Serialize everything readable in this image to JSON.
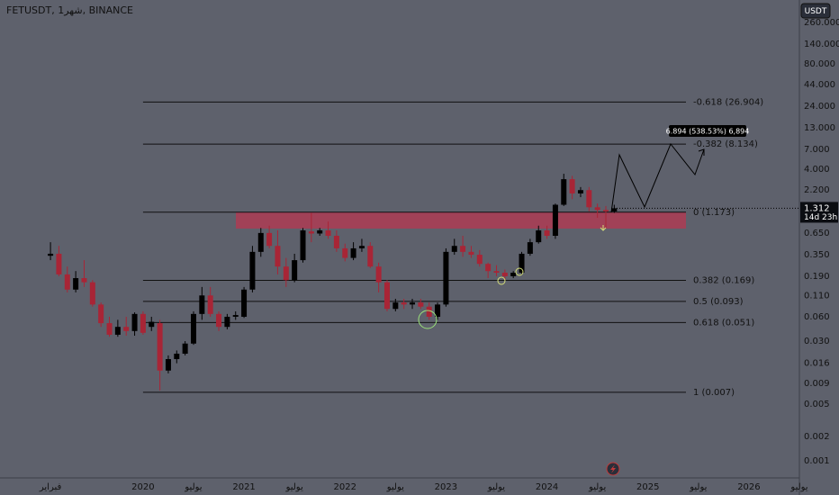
{
  "chart_data": {
    "type": "candlestick",
    "title": "FETUSDT, 1شهر, BINANCE",
    "currency_button": "USDT",
    "log_scale": true,
    "up_color": "#000000",
    "down_color": "#a82536",
    "x": [
      "2019-02",
      "2019-03",
      "2019-04",
      "2019-05",
      "2019-06",
      "2019-07",
      "2019-08",
      "2019-09",
      "2019-10",
      "2019-11",
      "2019-12",
      "2020-01",
      "2020-02",
      "2020-03",
      "2020-04",
      "2020-05",
      "2020-06",
      "2020-07",
      "2020-08",
      "2020-09",
      "2020-10",
      "2020-11",
      "2020-12",
      "2021-01",
      "2021-02",
      "2021-03",
      "2021-04",
      "2021-05",
      "2021-06",
      "2021-07",
      "2021-08",
      "2021-09",
      "2021-10",
      "2021-11",
      "2021-12",
      "2022-01",
      "2022-02",
      "2022-03",
      "2022-04",
      "2022-05",
      "2022-06",
      "2022-07",
      "2022-08",
      "2022-09",
      "2022-10",
      "2022-11",
      "2022-12",
      "2023-01",
      "2023-02",
      "2023-03",
      "2023-04",
      "2023-05",
      "2023-06",
      "2023-07",
      "2023-08",
      "2023-09",
      "2023-10",
      "2023-11",
      "2023-12",
      "2024-01",
      "2024-02",
      "2024-03",
      "2024-04",
      "2024-05",
      "2024-06",
      "2024-07",
      "2024-08",
      "2024-09"
    ],
    "open": [
      0.34,
      0.36,
      0.2,
      0.13,
      0.18,
      0.16,
      0.085,
      0.05,
      0.036,
      0.045,
      0.04,
      0.065,
      0.045,
      0.05,
      0.013,
      0.018,
      0.021,
      0.028,
      0.065,
      0.11,
      0.065,
      0.045,
      0.06,
      0.06,
      0.13,
      0.38,
      0.65,
      0.45,
      0.25,
      0.17,
      0.3,
      0.68,
      0.64,
      0.7,
      0.6,
      0.42,
      0.32,
      0.42,
      0.45,
      0.25,
      0.16,
      0.075,
      0.09,
      0.085,
      0.09,
      0.08,
      0.06,
      0.085,
      0.38,
      0.45,
      0.38,
      0.35,
      0.27,
      0.22,
      0.21,
      0.19,
      0.21,
      0.36,
      0.5,
      0.7,
      0.6,
      1.45,
      3.0,
      2.0,
      2.2,
      1.35,
      1.25,
      1.2
    ],
    "high": [
      0.5,
      0.45,
      0.25,
      0.22,
      0.3,
      0.17,
      0.09,
      0.06,
      0.055,
      0.06,
      0.068,
      0.07,
      0.06,
      0.055,
      0.02,
      0.023,
      0.03,
      0.07,
      0.14,
      0.14,
      0.07,
      0.065,
      0.07,
      0.14,
      0.45,
      0.75,
      0.8,
      0.7,
      0.32,
      0.36,
      0.75,
      1.15,
      0.75,
      0.9,
      0.7,
      0.48,
      0.5,
      0.55,
      0.5,
      0.28,
      0.17,
      0.1,
      0.1,
      0.1,
      0.1,
      0.09,
      0.09,
      0.42,
      0.55,
      0.6,
      0.45,
      0.4,
      0.28,
      0.26,
      0.23,
      0.22,
      0.38,
      0.55,
      0.8,
      0.8,
      1.5,
      3.5,
      3.3,
      2.4,
      2.4,
      1.5,
      1.4,
      1.45
    ],
    "low": [
      0.3,
      0.19,
      0.12,
      0.12,
      0.14,
      0.08,
      0.045,
      0.034,
      0.034,
      0.035,
      0.035,
      0.036,
      0.04,
      0.0074,
      0.012,
      0.016,
      0.02,
      0.027,
      0.055,
      0.06,
      0.04,
      0.042,
      0.055,
      0.058,
      0.12,
      0.33,
      0.42,
      0.2,
      0.14,
      0.16,
      0.28,
      0.5,
      0.6,
      0.55,
      0.38,
      0.29,
      0.3,
      0.38,
      0.24,
      0.12,
      0.07,
      0.07,
      0.075,
      0.075,
      0.075,
      0.055,
      0.055,
      0.08,
      0.35,
      0.33,
      0.32,
      0.25,
      0.18,
      0.19,
      0.17,
      0.18,
      0.2,
      0.34,
      0.48,
      0.55,
      0.55,
      1.4,
      1.7,
      1.8,
      1.2,
      1.0,
      0.75,
      1.15
    ],
    "close": [
      0.36,
      0.2,
      0.13,
      0.18,
      0.16,
      0.085,
      0.05,
      0.036,
      0.045,
      0.04,
      0.065,
      0.038,
      0.052,
      0.013,
      0.018,
      0.021,
      0.028,
      0.065,
      0.11,
      0.065,
      0.045,
      0.06,
      0.063,
      0.13,
      0.38,
      0.65,
      0.45,
      0.25,
      0.17,
      0.3,
      0.7,
      0.64,
      0.7,
      0.6,
      0.42,
      0.32,
      0.42,
      0.45,
      0.25,
      0.16,
      0.075,
      0.09,
      0.085,
      0.09,
      0.08,
      0.06,
      0.085,
      0.38,
      0.45,
      0.38,
      0.35,
      0.27,
      0.22,
      0.21,
      0.19,
      0.21,
      0.36,
      0.5,
      0.7,
      0.6,
      1.45,
      3.0,
      2.0,
      2.2,
      1.35,
      1.25,
      1.2,
      1.312
    ],
    "xlim": [
      "2018-08",
      "2026-07"
    ],
    "xticks": [
      {
        "value": "2019-02",
        "label": "فبراير"
      },
      {
        "value": "2020-01",
        "label": "2020"
      },
      {
        "value": "2020-07",
        "label": "يوليو"
      },
      {
        "value": "2021-01",
        "label": "2021"
      },
      {
        "value": "2021-07",
        "label": "يوليو"
      },
      {
        "value": "2022-01",
        "label": "2022"
      },
      {
        "value": "2022-07",
        "label": "يوليو"
      },
      {
        "value": "2023-01",
        "label": "2023"
      },
      {
        "value": "2023-07",
        "label": "يوليو"
      },
      {
        "value": "2024-01",
        "label": "2024"
      },
      {
        "value": "2024-07",
        "label": "يوليو"
      },
      {
        "value": "2025-01",
        "label": "2025"
      },
      {
        "value": "2025-07",
        "label": "يوليو"
      },
      {
        "value": "2026-01",
        "label": "2026"
      },
      {
        "value": "2026-07",
        "label": "يوليو"
      }
    ],
    "ylim": [
      0.00063,
      490
    ],
    "yticks": [
      {
        "value": 260,
        "label": "260.000"
      },
      {
        "value": 140,
        "label": "140.000"
      },
      {
        "value": 80,
        "label": "80.000"
      },
      {
        "value": 44,
        "label": "44.000"
      },
      {
        "value": 24,
        "label": "24.000"
      },
      {
        "value": 13,
        "label": "13.000"
      },
      {
        "value": 7,
        "label": "7.000"
      },
      {
        "value": 4,
        "label": "4.000"
      },
      {
        "value": 2.2,
        "label": "2.200"
      },
      {
        "value": 0.65,
        "label": "0.650"
      },
      {
        "value": 0.35,
        "label": "0.350"
      },
      {
        "value": 0.19,
        "label": "0.190"
      },
      {
        "value": 0.11,
        "label": "0.110"
      },
      {
        "value": 0.06,
        "label": "0.060"
      },
      {
        "value": 0.03,
        "label": "0.030"
      },
      {
        "value": 0.016,
        "label": "0.016"
      },
      {
        "value": 0.009,
        "label": "0.009"
      },
      {
        "value": 0.005,
        "label": "0.005"
      },
      {
        "value": 0.002,
        "label": "0.002"
      },
      {
        "value": 0.001,
        "label": "0.001"
      }
    ],
    "fib_levels": [
      {
        "value": 26.904,
        "label": "-0.618 (26.904)"
      },
      {
        "value": 8.134,
        "label": "-0.382 (8.134)"
      },
      {
        "value": 1.173,
        "label": "0 (1.173)"
      },
      {
        "value": 0.169,
        "label": "0.382 (0.169)"
      },
      {
        "value": 0.093,
        "label": "0.5 (0.093)"
      },
      {
        "value": 0.051,
        "label": "0.618 (0.051)"
      },
      {
        "value": 0.007,
        "label": "1 (0.007)"
      }
    ],
    "last_price": 1.312,
    "countdown": "14d 23h",
    "annotation": "6.894 (538.53%) 6,894"
  }
}
